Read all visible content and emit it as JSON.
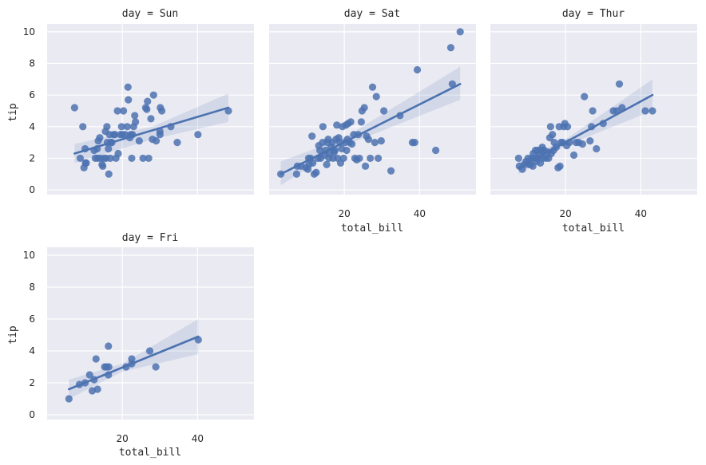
{
  "chart_data": {
    "type": "scatter",
    "facet_variable": "day",
    "xlabel": "total_bill",
    "ylabel": "tip",
    "xlim": [
      0,
      55
    ],
    "ylim": [
      -0.3,
      10.5
    ],
    "x_ticks": [
      20,
      40
    ],
    "y_ticks": [
      0,
      2,
      4,
      6,
      8,
      10
    ],
    "grid": true,
    "colors": {
      "background": "#eaeaf2",
      "grid": "#ffffff",
      "points": "#4c72b0",
      "fit_line": "#4c72b0",
      "confidence_band": "#4c72b0"
    },
    "panels": [
      {
        "title": "day = Sun",
        "show_xlabel": false,
        "show_xticks": false,
        "show_ylabel": true,
        "show_yticks": true,
        "points": [
          [
            7.3,
            5.2
          ],
          [
            8.8,
            2.0
          ],
          [
            9.5,
            4.0
          ],
          [
            9.8,
            1.4
          ],
          [
            10.2,
            1.7
          ],
          [
            10.4,
            1.7
          ],
          [
            10.1,
            2.6
          ],
          [
            12.5,
            2.5
          ],
          [
            12.8,
            2.0
          ],
          [
            13.3,
            2.6
          ],
          [
            13.4,
            2.0
          ],
          [
            13.6,
            3.1
          ],
          [
            14.0,
            3.3
          ],
          [
            14.1,
            2.0
          ],
          [
            14.6,
            1.6
          ],
          [
            14.8,
            1.5
          ],
          [
            15.1,
            2.0
          ],
          [
            15.5,
            3.7
          ],
          [
            15.7,
            2.0
          ],
          [
            15.9,
            4.0
          ],
          [
            16.0,
            3.0
          ],
          [
            16.3,
            2.6
          ],
          [
            16.4,
            1.0
          ],
          [
            16.6,
            3.5
          ],
          [
            16.8,
            2.0
          ],
          [
            17.0,
            3.0
          ],
          [
            17.2,
            3.0
          ],
          [
            17.7,
            3.5
          ],
          [
            18.0,
            3.5
          ],
          [
            18.3,
            2.0
          ],
          [
            18.7,
            5.0
          ],
          [
            18.9,
            2.3
          ],
          [
            19.5,
            3.5
          ],
          [
            19.8,
            4.0
          ],
          [
            20.0,
            3.5
          ],
          [
            20.3,
            5.0
          ],
          [
            20.8,
            3.5
          ],
          [
            21.3,
            4.0
          ],
          [
            21.5,
            6.5
          ],
          [
            21.6,
            5.7
          ],
          [
            22.0,
            3.3
          ],
          [
            22.2,
            3.5
          ],
          [
            22.5,
            2.0
          ],
          [
            22.7,
            3.5
          ],
          [
            23.0,
            4.0
          ],
          [
            23.3,
            4.7
          ],
          [
            23.5,
            4.3
          ],
          [
            24.5,
            3.1
          ],
          [
            25.5,
            2.0
          ],
          [
            26.2,
            5.2
          ],
          [
            26.5,
            5.1
          ],
          [
            26.7,
            5.6
          ],
          [
            27.0,
            2.0
          ],
          [
            27.6,
            4.5
          ],
          [
            28.0,
            3.2
          ],
          [
            28.3,
            6.0
          ],
          [
            29.0,
            3.1
          ],
          [
            30.0,
            3.7
          ],
          [
            30.1,
            5.2
          ],
          [
            30.5,
            5.0
          ],
          [
            30.0,
            3.5
          ],
          [
            32.9,
            4.0
          ],
          [
            34.6,
            3.0
          ],
          [
            40.1,
            3.5
          ],
          [
            48.2,
            5.0
          ]
        ],
        "fit_line": [
          [
            7.3,
            2.3
          ],
          [
            48.2,
            5.2
          ]
        ],
        "ci_upper": [
          [
            7.3,
            2.9
          ],
          [
            28.0,
            4.0
          ],
          [
            48.2,
            6.1
          ]
        ],
        "ci_lower": [
          [
            7.3,
            1.7
          ],
          [
            28.0,
            3.2
          ],
          [
            48.2,
            4.3
          ]
        ]
      },
      {
        "title": "day = Sat",
        "show_xlabel": true,
        "show_xticks": true,
        "show_ylabel": false,
        "show_yticks": false,
        "points": [
          [
            3.1,
            1.0
          ],
          [
            7.3,
            1.0
          ],
          [
            7.5,
            1.5
          ],
          [
            8.5,
            1.5
          ],
          [
            9.8,
            1.4
          ],
          [
            10.3,
            1.3
          ],
          [
            10.5,
            2.0
          ],
          [
            10.6,
            1.6
          ],
          [
            11.0,
            2.0
          ],
          [
            11.4,
            3.4
          ],
          [
            11.6,
            1.7
          ],
          [
            12.0,
            1.0
          ],
          [
            12.5,
            1.1
          ],
          [
            13.0,
            2.0
          ],
          [
            13.2,
            2.8
          ],
          [
            13.5,
            2.5
          ],
          [
            13.7,
            2.0
          ],
          [
            14.2,
            3.0
          ],
          [
            14.3,
            4.0
          ],
          [
            14.7,
            2.2
          ],
          [
            15.0,
            2.5
          ],
          [
            15.3,
            1.6
          ],
          [
            15.5,
            3.0
          ],
          [
            15.7,
            3.2
          ],
          [
            15.9,
            2.0
          ],
          [
            16.1,
            2.3
          ],
          [
            16.5,
            2.7
          ],
          [
            16.8,
            3.0
          ],
          [
            17.0,
            2.0
          ],
          [
            17.3,
            2.4
          ],
          [
            17.5,
            2.5
          ],
          [
            17.8,
            3.2
          ],
          [
            18.0,
            4.1
          ],
          [
            18.2,
            2.0
          ],
          [
            18.5,
            3.3
          ],
          [
            18.8,
            3.0
          ],
          [
            19.0,
            1.7
          ],
          [
            19.3,
            2.6
          ],
          [
            19.5,
            4.0
          ],
          [
            19.8,
            2.0
          ],
          [
            20.2,
            3.0
          ],
          [
            20.4,
            4.1
          ],
          [
            20.6,
            2.5
          ],
          [
            20.8,
            3.2
          ],
          [
            21.0,
            4.2
          ],
          [
            21.4,
            3.0
          ],
          [
            21.7,
            4.3
          ],
          [
            22.0,
            2.9
          ],
          [
            22.5,
            3.5
          ],
          [
            22.8,
            2.0
          ],
          [
            23.3,
            1.9
          ],
          [
            23.7,
            3.5
          ],
          [
            24.0,
            2.0
          ],
          [
            24.5,
            4.3
          ],
          [
            24.7,
            5.0
          ],
          [
            25.3,
            5.2
          ],
          [
            25.6,
            1.5
          ],
          [
            25.9,
            3.4
          ],
          [
            26.4,
            3.2
          ],
          [
            26.9,
            2.0
          ],
          [
            27.5,
            6.5
          ],
          [
            28.1,
            3.0
          ],
          [
            28.5,
            5.9
          ],
          [
            29.0,
            2.0
          ],
          [
            29.8,
            3.1
          ],
          [
            30.5,
            5.0
          ],
          [
            32.4,
            1.2
          ],
          [
            34.8,
            4.7
          ],
          [
            38.1,
            3.0
          ],
          [
            38.7,
            3.0
          ],
          [
            39.4,
            7.6
          ],
          [
            44.3,
            2.5
          ],
          [
            48.3,
            9.0
          ],
          [
            48.7,
            6.7
          ],
          [
            50.8,
            10.0
          ]
        ],
        "fit_line": [
          [
            3.1,
            1.0
          ],
          [
            50.8,
            6.7
          ]
        ],
        "ci_upper": [
          [
            3.1,
            1.8
          ],
          [
            20.0,
            3.3
          ],
          [
            50.8,
            7.8
          ]
        ],
        "ci_lower": [
          [
            3.1,
            0.3
          ],
          [
            20.0,
            2.8
          ],
          [
            50.8,
            5.7
          ]
        ]
      },
      {
        "title": "day = Thur",
        "show_xlabel": true,
        "show_xticks": true,
        "show_ylabel": false,
        "show_yticks": false,
        "points": [
          [
            7.5,
            2.0
          ],
          [
            7.7,
            1.5
          ],
          [
            8.5,
            1.3
          ],
          [
            9.0,
            1.6
          ],
          [
            9.5,
            1.8
          ],
          [
            10.0,
            2.0
          ],
          [
            10.3,
            1.6
          ],
          [
            10.7,
            1.6
          ],
          [
            11.0,
            2.0
          ],
          [
            11.3,
            1.5
          ],
          [
            11.4,
            2.3
          ],
          [
            11.7,
            2.0
          ],
          [
            12.0,
            2.5
          ],
          [
            12.3,
            1.8
          ],
          [
            12.5,
            2.5
          ],
          [
            12.7,
            2.0
          ],
          [
            13.0,
            2.2
          ],
          [
            13.3,
            1.7
          ],
          [
            13.5,
            2.5
          ],
          [
            13.8,
            2.7
          ],
          [
            14.0,
            2.0
          ],
          [
            14.3,
            2.5
          ],
          [
            14.8,
            2.0
          ],
          [
            15.2,
            2.4
          ],
          [
            15.5,
            2.0
          ],
          [
            15.8,
            3.3
          ],
          [
            16.0,
            4.0
          ],
          [
            16.2,
            2.3
          ],
          [
            16.5,
            3.5
          ],
          [
            16.8,
            2.5
          ],
          [
            17.0,
            3.0
          ],
          [
            17.5,
            2.7
          ],
          [
            18.0,
            1.4
          ],
          [
            18.3,
            4.0
          ],
          [
            18.5,
            1.5
          ],
          [
            18.8,
            3.0
          ],
          [
            19.2,
            3.0
          ],
          [
            19.5,
            4.0
          ],
          [
            19.8,
            4.2
          ],
          [
            20.3,
            2.8
          ],
          [
            20.5,
            4.0
          ],
          [
            21.0,
            3.0
          ],
          [
            22.2,
            2.2
          ],
          [
            22.8,
            3.0
          ],
          [
            23.5,
            3.0
          ],
          [
            24.5,
            2.9
          ],
          [
            25.0,
            5.9
          ],
          [
            26.5,
            3.1
          ],
          [
            26.9,
            4.0
          ],
          [
            27.2,
            5.0
          ],
          [
            28.2,
            2.6
          ],
          [
            30.0,
            4.2
          ],
          [
            32.7,
            5.0
          ],
          [
            33.6,
            5.0
          ],
          [
            34.3,
            6.7
          ],
          [
            35.0,
            5.2
          ],
          [
            41.2,
            5.0
          ],
          [
            43.1,
            5.0
          ]
        ],
        "fit_line": [
          [
            7.5,
            1.4
          ],
          [
            43.1,
            6.0
          ]
        ],
        "ci_upper": [
          [
            7.5,
            1.8
          ],
          [
            20.0,
            3.2
          ],
          [
            43.1,
            7.0
          ]
        ],
        "ci_lower": [
          [
            7.5,
            1.0
          ],
          [
            20.0,
            2.8
          ],
          [
            43.1,
            5.0
          ]
        ]
      },
      {
        "title": "day = Fri",
        "show_xlabel": true,
        "show_xticks": true,
        "show_ylabel": true,
        "show_yticks": true,
        "points": [
          [
            5.8,
            1.0
          ],
          [
            8.6,
            1.9
          ],
          [
            10.1,
            2.0
          ],
          [
            11.3,
            2.5
          ],
          [
            12.0,
            1.5
          ],
          [
            12.5,
            2.2
          ],
          [
            13.0,
            3.5
          ],
          [
            13.4,
            1.6
          ],
          [
            15.3,
            3.0
          ],
          [
            15.8,
            3.0
          ],
          [
            16.3,
            4.3
          ],
          [
            16.3,
            2.5
          ],
          [
            16.4,
            3.0
          ],
          [
            21.0,
            3.0
          ],
          [
            22.5,
            3.5
          ],
          [
            22.5,
            3.2
          ],
          [
            27.3,
            4.0
          ],
          [
            28.9,
            3.0
          ],
          [
            40.2,
            4.7
          ]
        ],
        "fit_line": [
          [
            5.8,
            1.6
          ],
          [
            40.2,
            4.9
          ]
        ],
        "ci_upper": [
          [
            5.8,
            2.2
          ],
          [
            20.0,
            3.2
          ],
          [
            40.2,
            6.0
          ]
        ],
        "ci_lower": [
          [
            5.8,
            1.0
          ],
          [
            20.0,
            2.7
          ],
          [
            40.2,
            3.8
          ]
        ]
      }
    ]
  }
}
